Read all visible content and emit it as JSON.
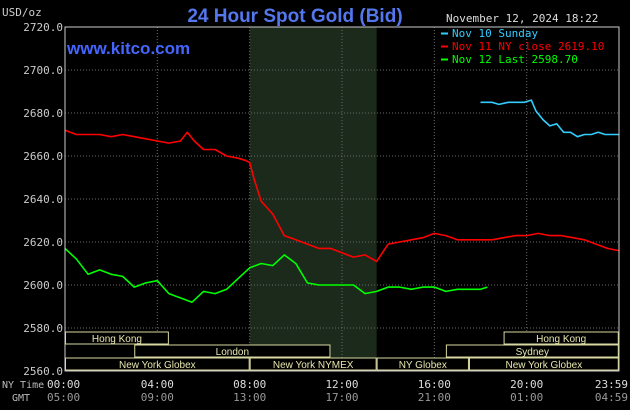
{
  "chart_data": {
    "type": "line",
    "title": "24 Hour Spot Gold (Bid)",
    "website": "www.kitco.com",
    "datetime": "November 12, 2024 18:22",
    "unit_label": "USD/oz",
    "ylim": [
      2560,
      2720
    ],
    "y_ticks": [
      "2720.0",
      "2700.0",
      "2680.0",
      "2660.0",
      "2640.0",
      "2620.0",
      "2600.0",
      "2580.0",
      "2560.0"
    ],
    "y_tick_values": [
      2720,
      2700,
      2680,
      2660,
      2640,
      2620,
      2600,
      2580,
      2560
    ],
    "x_range_hours": [
      0,
      24
    ],
    "x_tick_hours": [
      0,
      4,
      8,
      12,
      16,
      20,
      24
    ],
    "x_ticks_ny": [
      "00:00",
      "04:00",
      "08:00",
      "12:00",
      "16:00",
      "20:00",
      "23:59"
    ],
    "x_ticks_gmt": [
      "05:00",
      "09:00",
      "13:00",
      "17:00",
      "21:00",
      "01:00",
      "04:59"
    ],
    "ny_time_label": "NY Time",
    "gmt_label": "GMT",
    "grid": true,
    "legend_position": "top-right",
    "shaded_region_hours": [
      8,
      13.5
    ],
    "series": [
      {
        "name": "Nov 10 Sunday",
        "color": "#33ccff",
        "x": [
          18.0,
          18.5,
          18.8,
          19.2,
          19.6,
          19.9,
          20.2,
          20.4,
          20.7,
          21.0,
          21.3,
          21.6,
          21.9,
          22.2,
          22.5,
          22.8,
          23.1,
          23.4,
          23.7,
          23.99
        ],
        "y": [
          2685,
          2685,
          2684,
          2685,
          2685,
          2685,
          2686,
          2681,
          2677,
          2674,
          2675,
          2671,
          2671,
          2669,
          2670,
          2670,
          2671,
          2670,
          2670,
          2670
        ]
      },
      {
        "name": "Nov 11 NY close 2619.10",
        "color": "#ff0000",
        "x": [
          0.0,
          0.5,
          1.0,
          1.5,
          2.0,
          2.5,
          3.0,
          3.5,
          4.0,
          4.5,
          5.0,
          5.3,
          5.6,
          6.0,
          6.5,
          7.0,
          7.5,
          7.8,
          8.0,
          8.2,
          8.5,
          9.0,
          9.5,
          10.0,
          10.5,
          11.0,
          11.5,
          12.0,
          12.5,
          13.0,
          13.5,
          14.0,
          14.5,
          15.0,
          15.5,
          16.0,
          16.5,
          17.0,
          17.5,
          18.0,
          18.5,
          19.0,
          19.5,
          20.0,
          20.5,
          21.0,
          21.5,
          22.0,
          22.5,
          23.0,
          23.5,
          23.99
        ],
        "y": [
          2672,
          2670,
          2670,
          2670,
          2669,
          2670,
          2669,
          2668,
          2667,
          2666,
          2667,
          2671,
          2667,
          2663,
          2663,
          2660,
          2659,
          2658,
          2657,
          2649,
          2639,
          2633,
          2623,
          2621,
          2619,
          2617,
          2617,
          2615,
          2613,
          2614,
          2611,
          2619,
          2620,
          2621,
          2622,
          2624,
          2623,
          2621,
          2621,
          2621,
          2621,
          2622,
          2623,
          2623,
          2624,
          2623,
          2623,
          2622,
          2621,
          2619,
          2617,
          2616
        ]
      },
      {
        "name": "Nov 12 Last 2598.70",
        "color": "#00ff00",
        "x": [
          0.0,
          0.5,
          1.0,
          1.5,
          2.0,
          2.5,
          3.0,
          3.5,
          4.0,
          4.5,
          5.0,
          5.5,
          6.0,
          6.5,
          7.0,
          7.5,
          8.0,
          8.5,
          9.0,
          9.5,
          10.0,
          10.5,
          11.0,
          11.5,
          12.0,
          12.5,
          13.0,
          13.5,
          14.0,
          14.5,
          15.0,
          15.5,
          16.0,
          16.5,
          17.0,
          17.5,
          18.0,
          18.3
        ],
        "y": [
          2617,
          2612,
          2605,
          2607,
          2605,
          2604,
          2599,
          2601,
          2602,
          2596,
          2594,
          2592,
          2597,
          2596,
          2598,
          2603,
          2608,
          2610,
          2609,
          2614,
          2610,
          2601,
          2600,
          2600,
          2600,
          2600,
          2596,
          2597,
          2599,
          2599,
          2598,
          2599,
          2599,
          2597,
          2598,
          2598,
          2598,
          2599
        ]
      }
    ],
    "sessions": [
      {
        "label": "Hong Kong",
        "start": 0,
        "end": 4.5
      },
      {
        "label": "Hong Kong",
        "start": 19.0,
        "end": 23.99
      },
      {
        "label": "London",
        "start": 3.0,
        "end": 11.5
      },
      {
        "label": "Sydney",
        "start": 16.5,
        "end": 23.99
      },
      {
        "label": "New York Globex",
        "start": 0,
        "end": 8.0
      },
      {
        "label": "New York NYMEX",
        "start": 8.0,
        "end": 13.5
      },
      {
        "label": "NY Globex",
        "start": 13.5,
        "end": 17.5
      },
      {
        "label": "New York Globex",
        "start": 17.5,
        "end": 23.99
      }
    ]
  }
}
